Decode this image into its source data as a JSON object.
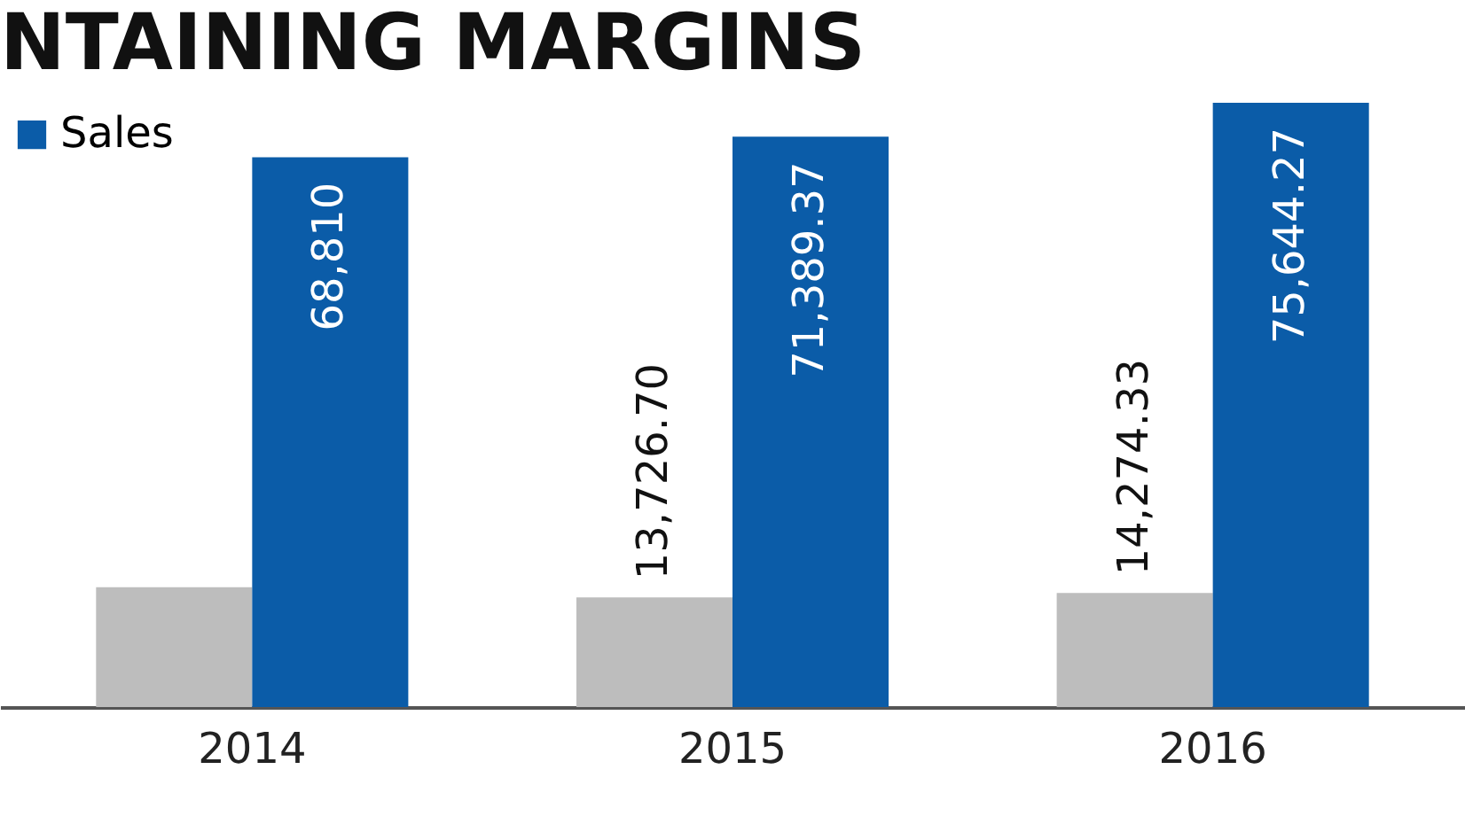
{
  "chart_data": {
    "type": "bar",
    "title": "NTAINING MARGINS",
    "categories": [
      "2014",
      "2015",
      "2016"
    ],
    "legend": "top left",
    "series": [
      {
        "name": null,
        "color": "#bdbdbd",
        "values": [
          15000,
          13726.7,
          14274.33
        ],
        "value_labels": [
          null,
          "13,726.70",
          "14,274.33"
        ]
      },
      {
        "name": "Sales",
        "color": "#0b5ca8",
        "values": [
          68810,
          71389.37,
          75644.27
        ],
        "value_labels": [
          "68,810",
          "71,389.37",
          "75,644.27"
        ]
      }
    ]
  }
}
